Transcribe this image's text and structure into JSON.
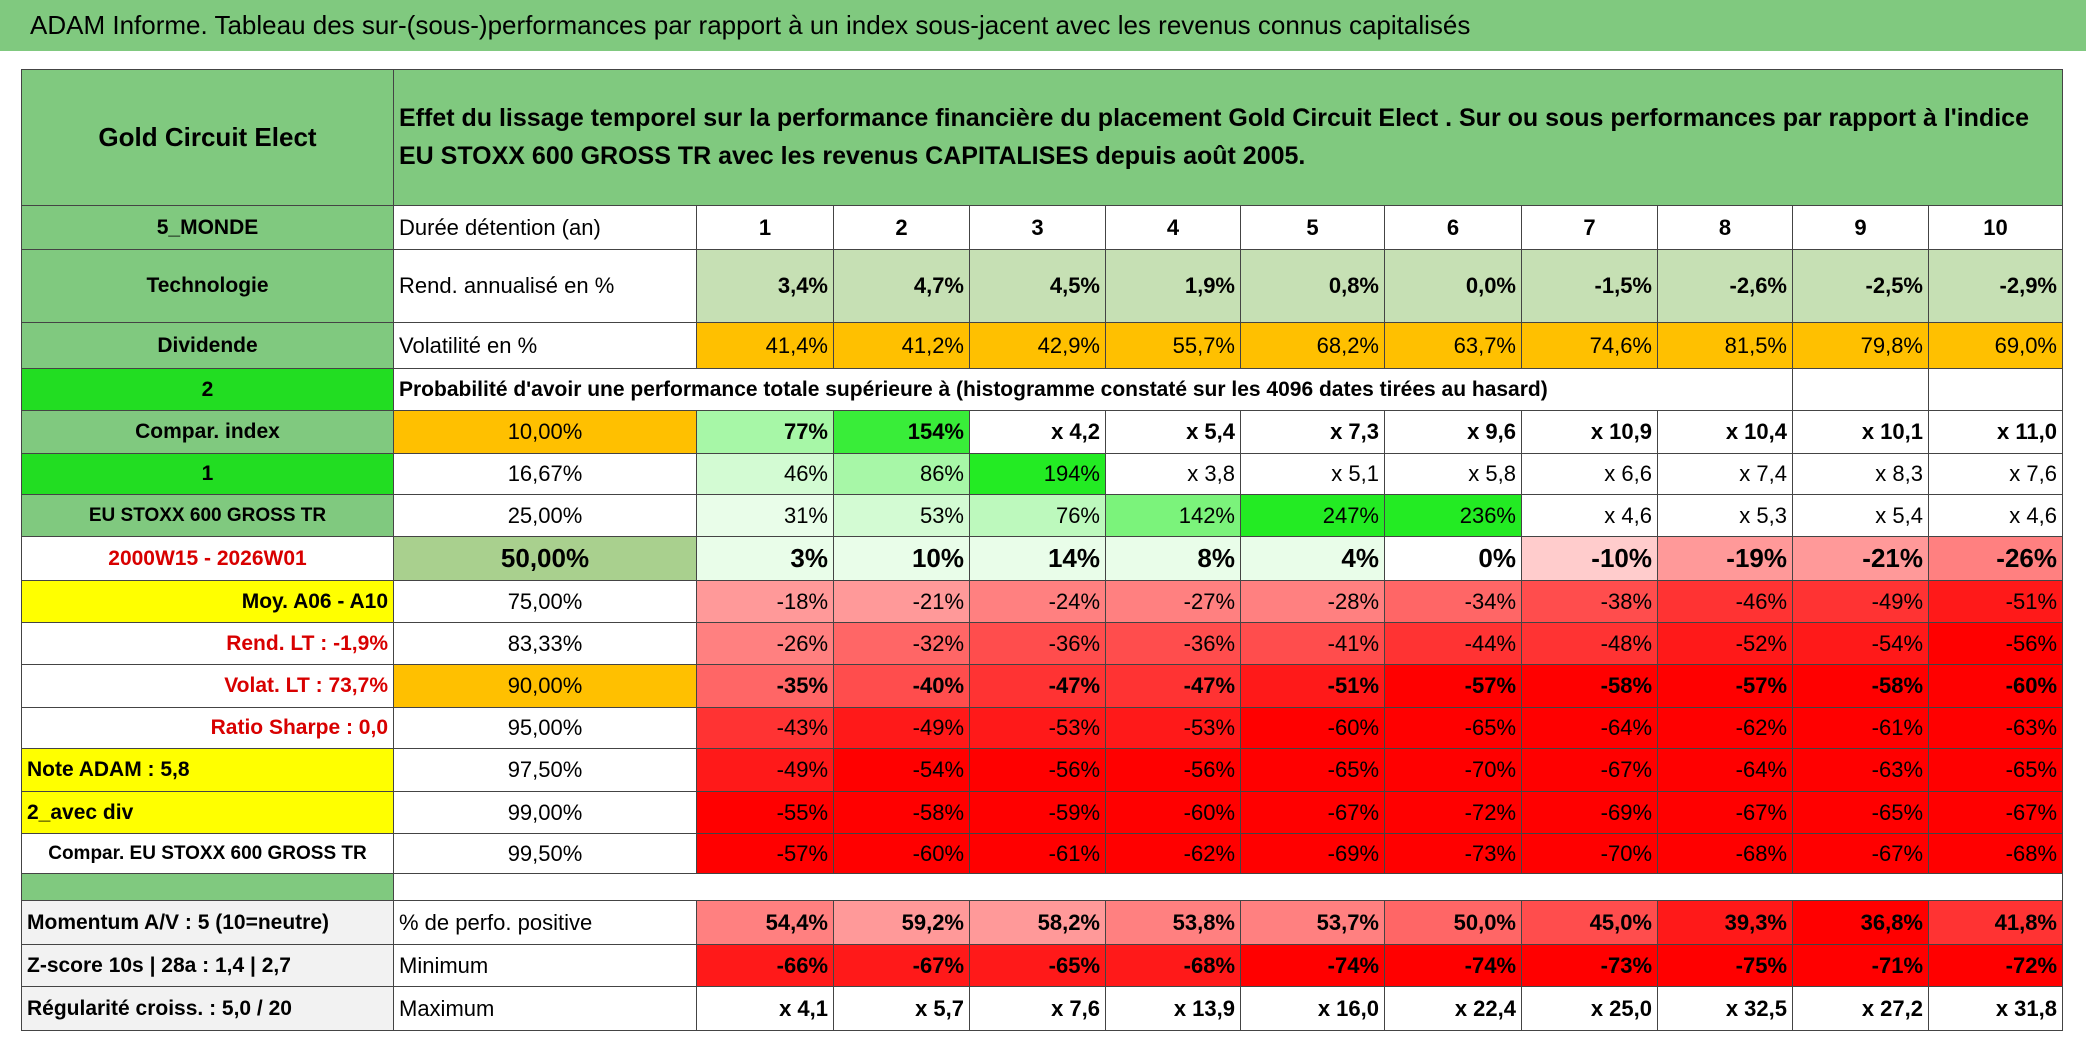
{
  "header": {
    "title": "ADAM Informe. Tableau des sur-(sous-)performances par rapport à un index sous-jacent avec les revenus connus capitalisés"
  },
  "table": {
    "rows": [
      [
        "Gold Circuit Elect",
        "Effet du lissage temporel sur la performance financière du placement Gold Circuit Elect . Sur ou sous performances par rapport à l'indice EU STOXX 600 GROSS TR avec les revenus CAPITALISES depuis août 2005."
      ],
      [
        "5_MONDE",
        "Durée détention (an)",
        "1",
        "2",
        "3",
        "4",
        "5",
        "6",
        "7",
        "8",
        "9",
        "10"
      ],
      [
        "Technologie",
        "Rend. annualisé en %",
        "3,4%",
        "4,7%",
        "4,5%",
        "1,9%",
        "0,8%",
        "0,0%",
        "-1,5%",
        "-2,6%",
        "-2,5%",
        "-2,9%"
      ],
      [
        "Dividende",
        "Volatilité en %",
        "41,4%",
        "41,2%",
        "42,9%",
        "55,7%",
        "68,2%",
        "63,7%",
        "74,6%",
        "81,5%",
        "79,8%",
        "69,0%"
      ],
      [
        "2",
        "Probabilité d'avoir une performance totale supérieure à (histogramme constaté sur les 4096 dates tirées au hasard)"
      ],
      [
        "Compar. index",
        "10,00%",
        "77%",
        "154%",
        "x 4,2",
        "x 5,4",
        "x 7,3",
        "x 9,6",
        "x 10,9",
        "x 10,4",
        "x 10,1",
        "x 11,0"
      ],
      [
        "1",
        "16,67%",
        "46%",
        "86%",
        "194%",
        "x 3,8",
        "x 5,1",
        "x 5,8",
        "x 6,6",
        "x 7,4",
        "x 8,3",
        "x 7,6"
      ],
      [
        "EU STOXX 600 GROSS TR",
        "25,00%",
        "31%",
        "53%",
        "76%",
        "142%",
        "247%",
        "236%",
        "x 4,6",
        "x 5,3",
        "x 5,4",
        "x 4,6"
      ],
      [
        "2000W15 - 2026W01",
        "50,00%",
        "3%",
        "10%",
        "14%",
        "8%",
        "4%",
        "0%",
        "-10%",
        "-19%",
        "-21%",
        "-26%"
      ],
      [
        "Moy. A06 - A10",
        "75,00%",
        "-18%",
        "-21%",
        "-24%",
        "-27%",
        "-28%",
        "-34%",
        "-38%",
        "-46%",
        "-49%",
        "-51%"
      ],
      [
        "Rend. LT :    -1,9%",
        "83,33%",
        "-26%",
        "-32%",
        "-36%",
        "-36%",
        "-41%",
        "-44%",
        "-48%",
        "-52%",
        "-54%",
        "-56%"
      ],
      [
        "Volat. LT :   73,7%",
        "90,00%",
        "-35%",
        "-40%",
        "-47%",
        "-47%",
        "-51%",
        "-57%",
        "-58%",
        "-57%",
        "-58%",
        "-60%"
      ],
      [
        "Ratio Sharpe :    0,0",
        "95,00%",
        "-43%",
        "-49%",
        "-53%",
        "-53%",
        "-60%",
        "-65%",
        "-64%",
        "-62%",
        "-61%",
        "-63%"
      ],
      [
        "Note ADAM : 5,8",
        "97,50%",
        "-49%",
        "-54%",
        "-56%",
        "-56%",
        "-65%",
        "-70%",
        "-67%",
        "-64%",
        "-63%",
        "-65%"
      ],
      [
        "2_avec div",
        "99,00%",
        "-55%",
        "-58%",
        "-59%",
        "-60%",
        "-67%",
        "-72%",
        "-69%",
        "-67%",
        "-65%",
        "-67%"
      ],
      [
        "Compar. EU STOXX 600 GROSS TR",
        "99,50%",
        "-57%",
        "-60%",
        "-61%",
        "-62%",
        "-69%",
        "-73%",
        "-70%",
        "-68%",
        "-67%",
        "-68%"
      ],
      [
        "Momentum A/V : 5 (10=neutre)",
        "% de perfo. positive",
        "54,4%",
        "59,2%",
        "58,2%",
        "53,8%",
        "53,7%",
        "50,0%",
        "45,0%",
        "39,3%",
        "36,8%",
        "41,8%"
      ],
      [
        "Z-score 10s | 28a : 1,4 | 2,7",
        "Minimum",
        "-66%",
        "-67%",
        "-65%",
        "-68%",
        "-74%",
        "-74%",
        "-73%",
        "-75%",
        "-71%",
        "-72%"
      ],
      [
        "Régularité croiss. : 5,0 / 20",
        "Maximum",
        "x 4,1",
        "x 5,7",
        "x 7,6",
        "x 13,9",
        "x 16,0",
        "x 22,4",
        "x 25,0",
        "x 32,5",
        "x 27,2",
        "x 31,8"
      ]
    ]
  }
}
